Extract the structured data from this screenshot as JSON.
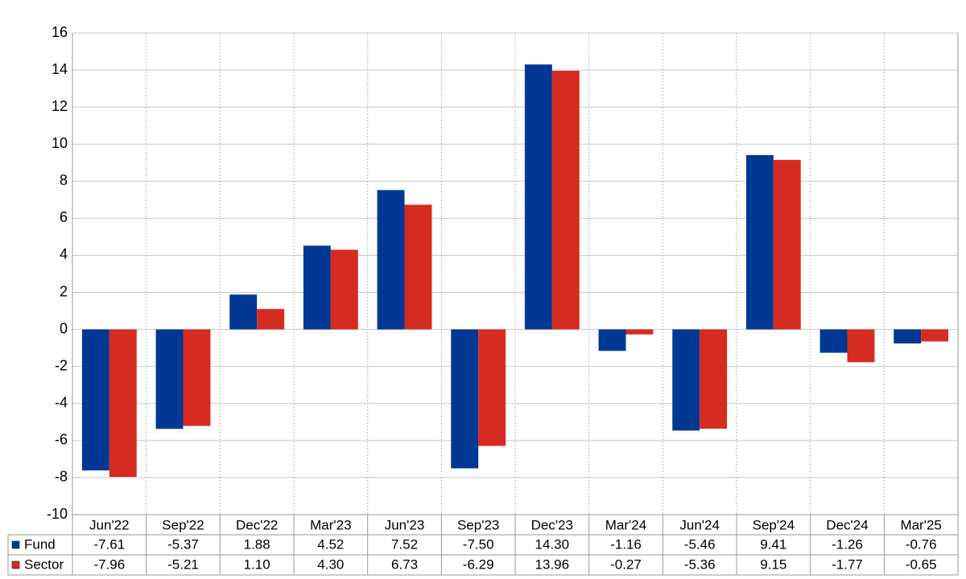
{
  "chart_data": {
    "type": "bar",
    "categories": [
      "Jun'22",
      "Sep'22",
      "Dec'22",
      "Mar'23",
      "Jun'23",
      "Sep'23",
      "Dec'23",
      "Mar'24",
      "Jun'24",
      "Sep'24",
      "Dec'24",
      "Mar'25"
    ],
    "series": [
      {
        "name": "Fund",
        "color": "#003893",
        "values": [
          -7.61,
          -5.37,
          1.88,
          4.52,
          7.52,
          -7.5,
          14.3,
          -1.16,
          -5.46,
          9.41,
          -1.26,
          -0.76
        ],
        "value_labels": [
          "-7.61",
          "-5.37",
          "1.88",
          "4.52",
          "7.52",
          "-7.50",
          "14.30",
          "-1.16",
          "-5.46",
          "9.41",
          "-1.26",
          "-0.76"
        ]
      },
      {
        "name": "Sector",
        "color": "#d62b20",
        "values": [
          -7.96,
          -5.21,
          1.1,
          4.3,
          6.73,
          -6.29,
          13.96,
          -0.27,
          -5.36,
          9.15,
          -1.77,
          -0.65
        ],
        "value_labels": [
          "-7.96",
          "-5.21",
          "1.10",
          "4.30",
          "6.73",
          "-6.29",
          "13.96",
          "-0.27",
          "-5.36",
          "9.15",
          "-1.77",
          "-0.65"
        ]
      }
    ],
    "ylim": [
      -10,
      16
    ],
    "yticks": [
      -10,
      -8,
      -6,
      -4,
      -2,
      0,
      2,
      4,
      6,
      8,
      10,
      12,
      14,
      16
    ],
    "grid": true,
    "negative_label_color": "#ff0000"
  }
}
